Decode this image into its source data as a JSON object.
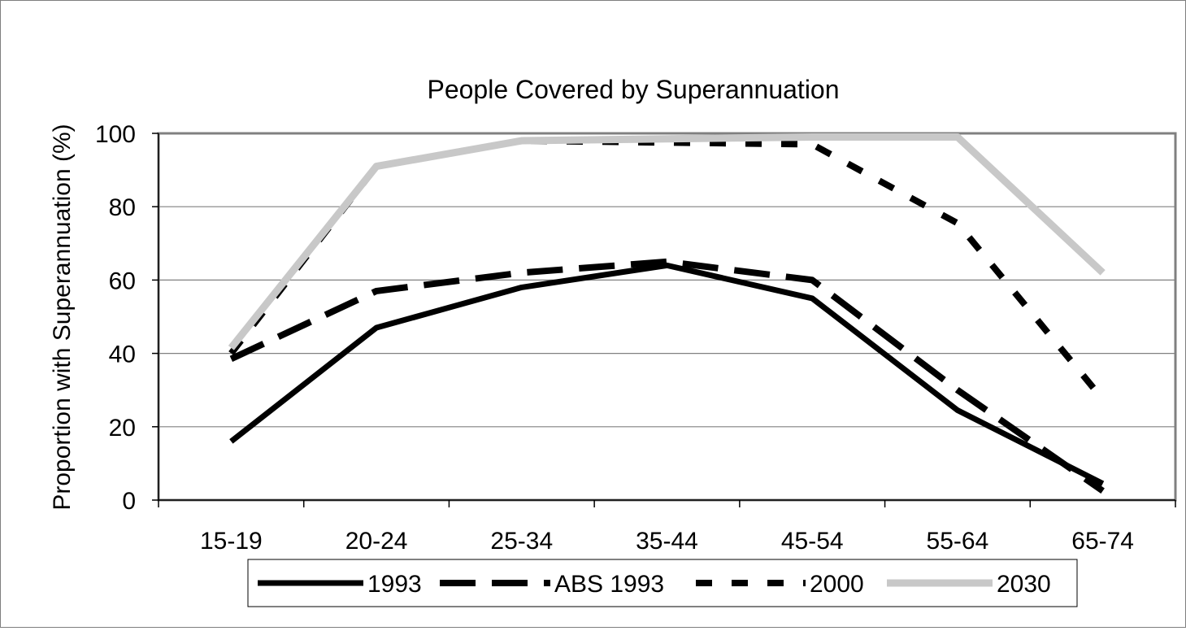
{
  "chart_data": {
    "type": "line",
    "title": "People Covered by Superannuation",
    "xlabel": "",
    "ylabel": "Proportion with Superannuation (%)",
    "categories": [
      "15-19",
      "20-24",
      "25-34",
      "35-44",
      "45-54",
      "55-64",
      "65-74"
    ],
    "ylim": [
      0,
      100
    ],
    "yticks": [
      "0",
      "20",
      "40",
      "60",
      "80",
      "100"
    ],
    "grid": true,
    "legend_position": "bottom",
    "series": [
      {
        "name": "1993",
        "values": [
          16,
          47,
          58,
          64,
          55,
          24.5,
          4.5
        ],
        "color": "#000000",
        "dash": "solid"
      },
      {
        "name": "ABS 1993",
        "values": [
          38.5,
          57,
          62,
          65,
          60,
          30,
          2.5
        ],
        "color": "#000000",
        "dash": "long-dash"
      },
      {
        "name": "2000",
        "values": [
          40,
          91,
          98,
          97.5,
          97,
          75.5,
          27.5
        ],
        "color": "#000000",
        "dash": "short-dash"
      },
      {
        "name": "2030",
        "values": [
          41.5,
          91,
          98,
          98.5,
          99,
          99,
          62
        ],
        "color": "#c8c8c8",
        "dash": "solid"
      }
    ]
  }
}
